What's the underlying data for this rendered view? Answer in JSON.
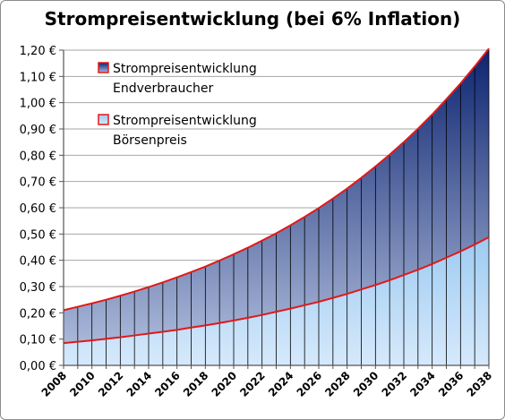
{
  "chart_data": {
    "type": "area",
    "title": "Strompreisentwicklung (bei 6% Inflation)",
    "xlabel": "",
    "ylabel": "",
    "x": [
      2008,
      2009,
      2010,
      2011,
      2012,
      2013,
      2014,
      2015,
      2016,
      2017,
      2018,
      2019,
      2020,
      2021,
      2022,
      2023,
      2024,
      2025,
      2026,
      2027,
      2028,
      2029,
      2030,
      2031,
      2032,
      2033,
      2034,
      2035,
      2036,
      2037,
      2038
    ],
    "x_tick_labels": [
      "2008",
      "2010",
      "2012",
      "2014",
      "2016",
      "2018",
      "2020",
      "2022",
      "2024",
      "2026",
      "2028",
      "2030",
      "2032",
      "2034",
      "2036",
      "2038"
    ],
    "ylim": [
      0,
      1.2
    ],
    "y_ticks": [
      0,
      0.1,
      0.2,
      0.3,
      0.4,
      0.5,
      0.6,
      0.7,
      0.8,
      0.9,
      1.0,
      1.1,
      1.2
    ],
    "y_tick_labels": [
      "0,00 €",
      "0,10 €",
      "0,20 €",
      "0,30 €",
      "0,40 €",
      "0,50 €",
      "0,60 €",
      "0,70 €",
      "0,80 €",
      "0,90 €",
      "1,00 €",
      "1,10 €",
      "1,20 €"
    ],
    "grid": true,
    "legend_position": "top-left",
    "series": [
      {
        "name": [
          "Strompreisentwicklung",
          "Endverbraucher"
        ],
        "color_top": "#0d2470",
        "color_bottom": "#a9b7d8",
        "line_color": "#e01a1a",
        "values": [
          0.21,
          0.223,
          0.236,
          0.25,
          0.265,
          0.281,
          0.298,
          0.316,
          0.335,
          0.355,
          0.376,
          0.399,
          0.423,
          0.448,
          0.475,
          0.503,
          0.533,
          0.565,
          0.599,
          0.635,
          0.673,
          0.714,
          0.757,
          0.802,
          0.85,
          0.901,
          0.955,
          1.013,
          1.073,
          1.138,
          1.206
        ]
      },
      {
        "name": [
          "Strompreisentwicklung",
          "Börsenpreis"
        ],
        "color_top": "#9ecbf2",
        "color_bottom": "#d6e9fb",
        "line_color": "#e01a1a",
        "values": [
          0.085,
          0.09,
          0.095,
          0.101,
          0.107,
          0.114,
          0.121,
          0.128,
          0.135,
          0.144,
          0.152,
          0.161,
          0.171,
          0.181,
          0.192,
          0.204,
          0.216,
          0.229,
          0.242,
          0.257,
          0.272,
          0.289,
          0.306,
          0.324,
          0.344,
          0.364,
          0.386,
          0.41,
          0.434,
          0.46,
          0.488
        ]
      }
    ]
  }
}
